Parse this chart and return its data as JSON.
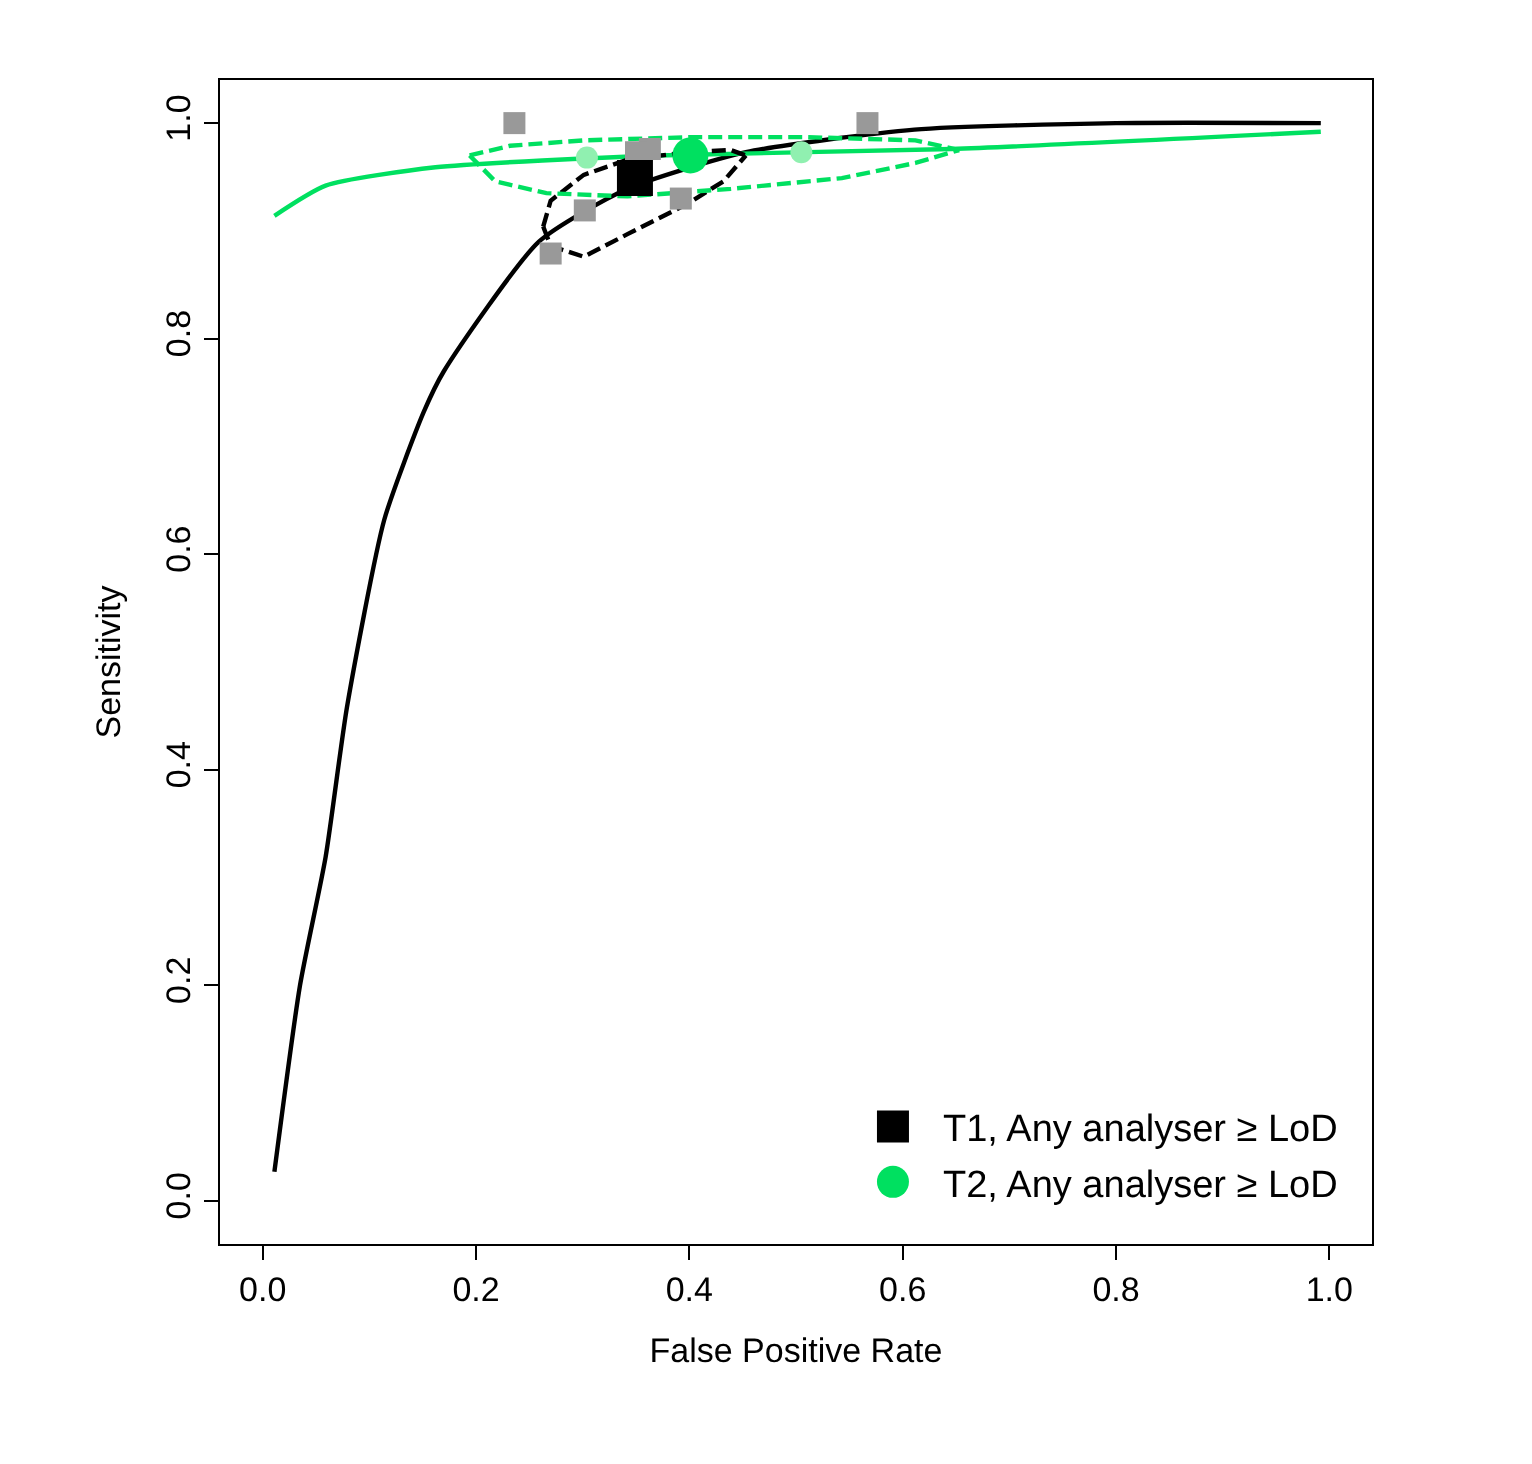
{
  "chart_data": {
    "type": "line",
    "xlabel": "False Positive Rate",
    "ylabel": "Sensitivity",
    "xlim": [
      -0.04,
      1.04
    ],
    "ylim": [
      -0.04,
      1.04
    ],
    "xticks": [
      {
        "value": 0,
        "label": "0.0"
      },
      0.2,
      0.4,
      0.6,
      0.8,
      {
        "value": 1,
        "label": "1.0"
      }
    ],
    "yticks": [
      {
        "value": 0,
        "label": "0.0"
      },
      0.2,
      0.4,
      0.6,
      0.8,
      {
        "value": 1,
        "label": "1.0"
      }
    ],
    "legend": "bottom right",
    "series": [
      {
        "color": "#000000",
        "line_style": "solid",
        "marker": "none",
        "x": [
          0.011,
          0.035,
          0.059,
          0.079,
          0.114,
          0.151,
          0.17,
          0.259,
          0.342,
          0.453,
          0.611,
          0.8,
          0.992
        ],
        "values": [
          0.027,
          0.2,
          0.319,
          0.458,
          0.632,
          0.732,
          0.77,
          0.89,
          0.939,
          0.973,
          0.994,
          1.0,
          1.0
        ]
      },
      {
        "color": "#00e060",
        "line_style": "solid",
        "marker": "none",
        "x": [
          0.011,
          0.059,
          0.162,
          0.37,
          0.646,
          0.992
        ],
        "values": [
          0.914,
          0.942,
          0.959,
          0.97,
          0.976,
          0.992
        ]
      },
      {
        "color": "#000000",
        "line_style": "dashed",
        "marker": "none",
        "x": [
          0.263,
          0.27,
          0.301,
          0.342,
          0.398,
          0.439,
          0.453
        ],
        "values": [
          0.904,
          0.928,
          0.952,
          0.966,
          0.973,
          0.975,
          0.97
        ]
      },
      {
        "color": "#000000",
        "line_style": "dashed",
        "marker": "none",
        "x": [
          0.263,
          0.27,
          0.301,
          0.342,
          0.398,
          0.432,
          0.453
        ],
        "values": [
          0.904,
          0.886,
          0.876,
          0.897,
          0.925,
          0.946,
          0.97
        ]
      },
      {
        "color": "#00e060",
        "line_style": "dashed",
        "marker": "none",
        "x": [
          0.194,
          0.232,
          0.301,
          0.404,
          0.508,
          0.612,
          0.653
        ],
        "values": [
          0.97,
          0.979,
          0.984,
          0.987,
          0.987,
          0.984,
          0.975
        ]
      },
      {
        "color": "#00e060",
        "line_style": "dashed",
        "marker": "none",
        "x": [
          0.194,
          0.218,
          0.266,
          0.342,
          0.439,
          0.543,
          0.612,
          0.653
        ],
        "values": [
          0.97,
          0.946,
          0.935,
          0.932,
          0.939,
          0.949,
          0.963,
          0.975
        ]
      },
      {
        "type": "scatter",
        "color": "#999999",
        "marker": "square",
        "x": [
          0.236,
          0.567,
          0.363,
          0.35,
          0.302,
          0.27,
          0.392
        ],
        "values": [
          1.0,
          1.0,
          0.976,
          0.973,
          0.919,
          0.879,
          0.93
        ]
      },
      {
        "type": "scatter",
        "color": "#90f0b0",
        "marker": "circle",
        "x": [
          0.304,
          0.505
        ],
        "values": [
          0.968,
          0.973
        ]
      },
      {
        "type": "scatter",
        "name": "T1, Any analyser ≥ LoD",
        "color": "#000000",
        "marker": "square",
        "x": [
          0.349
        ],
        "values": [
          0.949
        ]
      },
      {
        "type": "scatter",
        "name": "T2, Any analyser ≥ LoD",
        "color": "#00e060",
        "marker": "circle",
        "x": [
          0.401
        ],
        "values": [
          0.97
        ]
      }
    ]
  }
}
